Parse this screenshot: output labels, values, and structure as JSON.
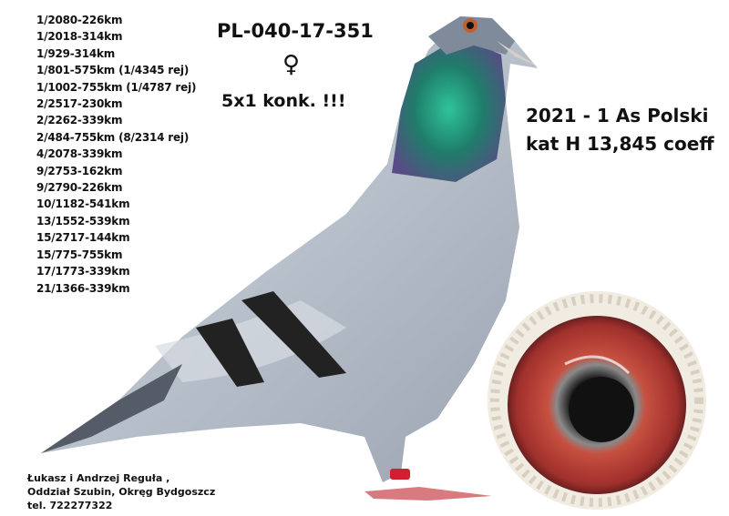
{
  "ring_number": "PL-040-17-351",
  "sex_symbol": "♀",
  "highlight": "5x1 konk. !!!",
  "achievement": {
    "line1": "2021 - 1 As Polski",
    "line2": "kat H 13,845 coeff"
  },
  "results": [
    "1/2080-226km",
    "1/2018-314km",
    "1/929-314km",
    "1/801-575km (1/4345 rej)",
    "1/1002-755km (1/4787 rej)",
    "2/2517-230km",
    "2/2262-339km",
    "2/484-755km (8/2314 rej)",
    "4/2078-339km",
    "9/2753-162km",
    "9/2790-226km",
    "10/1182-541km",
    "13/1552-539km",
    "15/2717-144km",
    "15/775-755km",
    "17/1773-339km",
    "21/1366-339km"
  ],
  "owner": {
    "name": "Łukasz i Andrzej Reguła ,",
    "location": "Oddział Szubin, Okręg Bydgoszcz",
    "phone": "tel. 722277322"
  },
  "colors": {
    "plumage": "#a9b1bd",
    "neck_green": "#1f8a6a",
    "neck_purple": "#6a4a8a",
    "eye_red": "#b8413a",
    "ring_band": "#d02030"
  }
}
